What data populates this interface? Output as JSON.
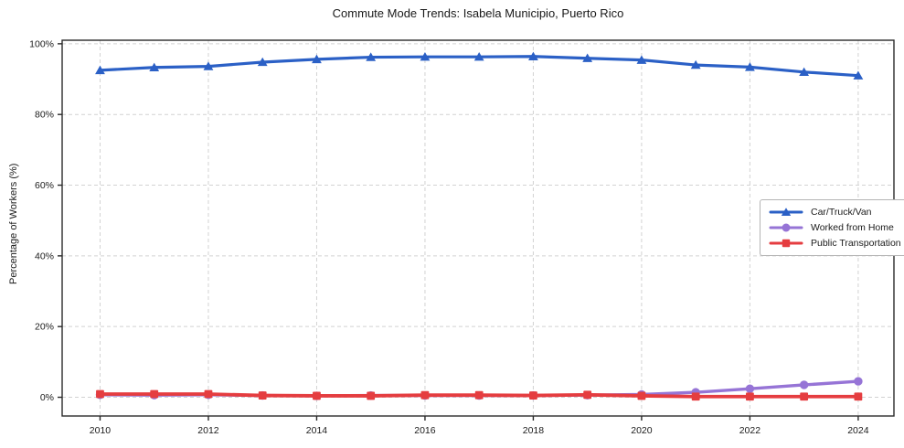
{
  "chart_data": {
    "type": "line",
    "title": "Commute Mode Trends: Isabela Municipio, Puerto Rico",
    "xlabel": "",
    "ylabel": "Percentage of Workers (%)",
    "x": [
      2010,
      2011,
      2012,
      2013,
      2014,
      2015,
      2016,
      2017,
      2018,
      2019,
      2020,
      2021,
      2022,
      2023,
      2024
    ],
    "series": [
      {
        "name": "Car/Truck/Van",
        "color": "#2b60c6",
        "marker": "triangle",
        "values": [
          92.5,
          93.3,
          93.6,
          94.8,
          95.6,
          96.2,
          96.3,
          96.3,
          96.4,
          95.9,
          95.4,
          94.0,
          93.4,
          92.0,
          91.0
        ]
      },
      {
        "name": "Worked from Home",
        "color": "#9674d6",
        "marker": "circle",
        "values": [
          0.7,
          0.6,
          0.7,
          0.5,
          0.4,
          0.5,
          0.5,
          0.5,
          0.5,
          0.6,
          0.8,
          1.4,
          2.4,
          3.5,
          4.5
        ]
      },
      {
        "name": "Public Transportation",
        "color": "#e53d40",
        "marker": "square",
        "values": [
          0.9,
          0.9,
          0.9,
          0.5,
          0.4,
          0.4,
          0.6,
          0.6,
          0.5,
          0.7,
          0.4,
          0.2,
          0.2,
          0.2,
          0.2
        ]
      }
    ],
    "xticks": [
      2010,
      2012,
      2014,
      2016,
      2018,
      2020,
      2022,
      2024
    ],
    "yticks": [
      0,
      20,
      40,
      60,
      80,
      100
    ],
    "ytick_suffix": "%",
    "xlim": [
      2009.3,
      2024.66
    ],
    "ylim": [
      -5.3,
      101.0
    ],
    "grid": true,
    "grid_color": "#d2d2d2",
    "spine_color": "#2a2a2a",
    "tick_label_color": "#1a1a1a",
    "legend_position": "center-right",
    "legend_border_color": "#b4b4b4",
    "background": "#ffffff"
  }
}
